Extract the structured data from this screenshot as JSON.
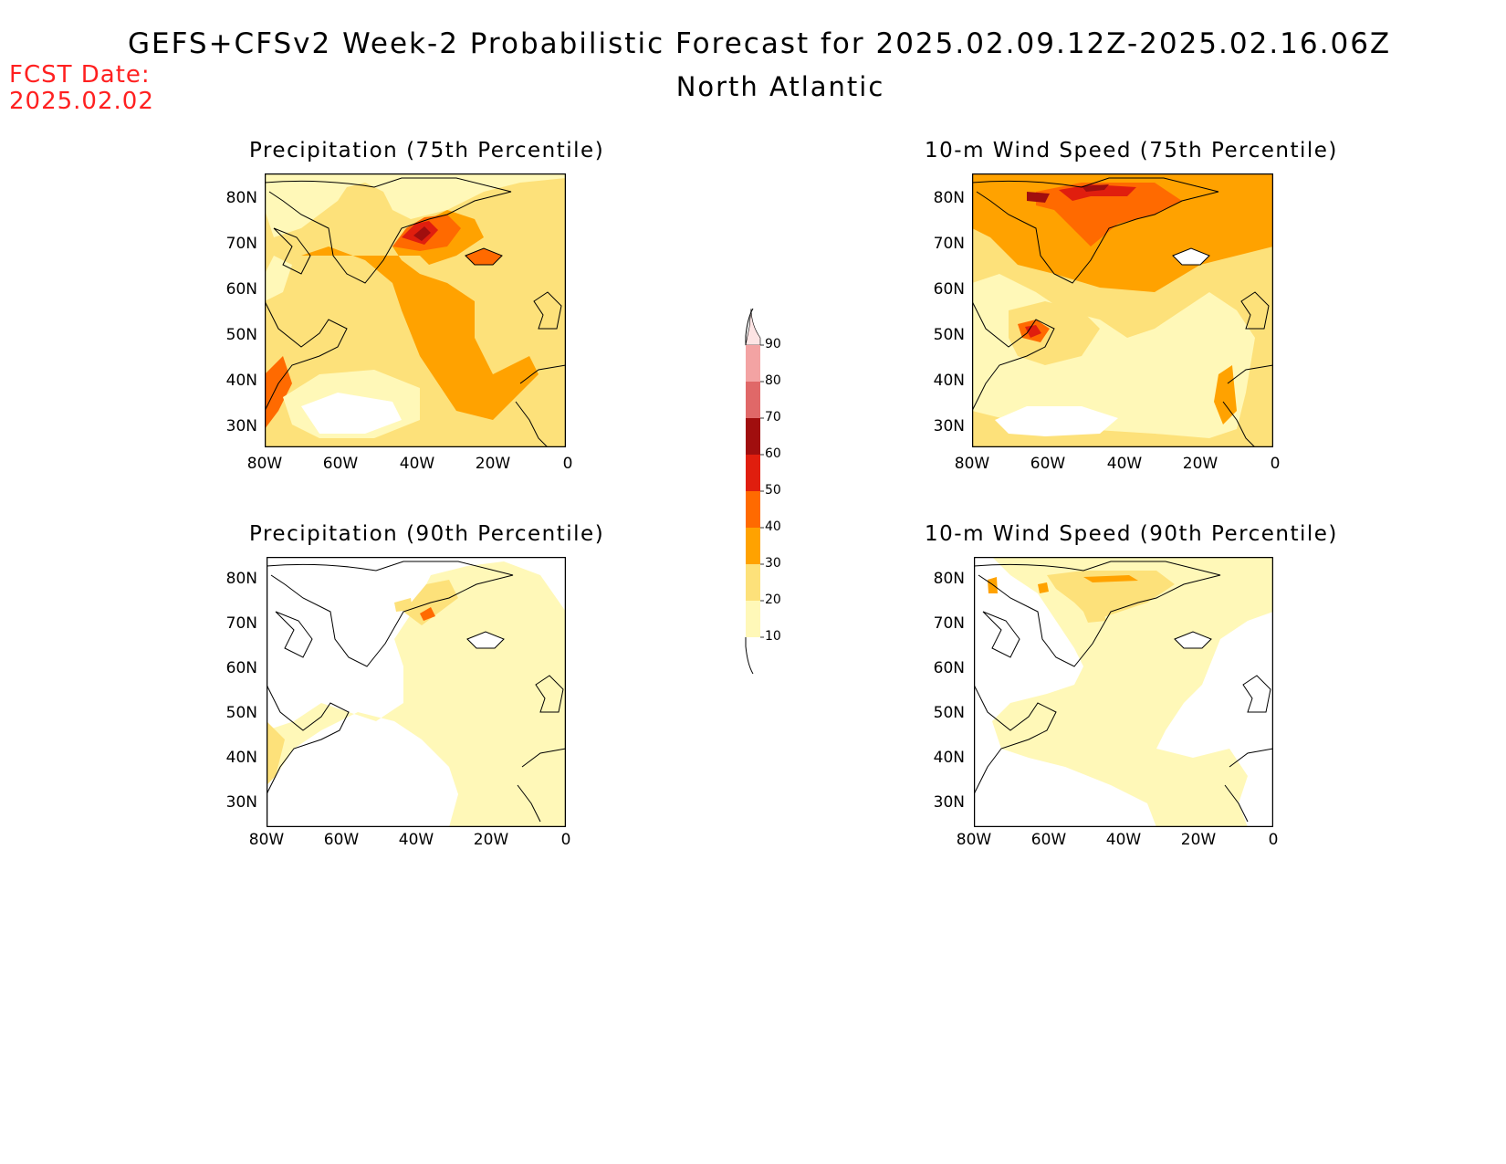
{
  "header": {
    "title": "GEFS+CFSv2 Week-2 Probabilistic Forecast for 2025.02.09.12Z-2025.02.16.06Z",
    "region": "North Atlantic",
    "fcst_label": "FCST Date:",
    "fcst_date": "2025.02.02"
  },
  "axes": {
    "lat_labels": [
      "80N",
      "70N",
      "60N",
      "50N",
      "40N",
      "30N"
    ],
    "lon_labels": [
      "80W",
      "60W",
      "40W",
      "20W",
      "0"
    ]
  },
  "panels": [
    {
      "id": "precip75",
      "title": "Precipitation (75th Percentile)"
    },
    {
      "id": "wind75",
      "title": "10-m Wind Speed (75th Percentile)"
    },
    {
      "id": "precip90",
      "title": "Precipitation (90th Percentile)"
    },
    {
      "id": "wind90",
      "title": "10-m Wind Speed (90th Percentile)"
    }
  ],
  "colorbar": {
    "levels": [
      "90",
      "80",
      "70",
      "60",
      "50",
      "40",
      "30",
      "20",
      "10"
    ],
    "colors": [
      "#fde4e4",
      "#f3a3a3",
      "#e06868",
      "#a00e0e",
      "#e01e0e",
      "#ff6a00",
      "#ffa200",
      "#fde17a",
      "#fff8b8"
    ]
  },
  "palette": {
    "coast": "#000000",
    "shade_light": "#fff8b8",
    "shade_yellow": "#fde17a",
    "shade_orange": "#ffa200",
    "shade_dark_orange": "#ff6a00",
    "shade_red": "#e01e0e",
    "shade_dark_red": "#a00e0e"
  }
}
